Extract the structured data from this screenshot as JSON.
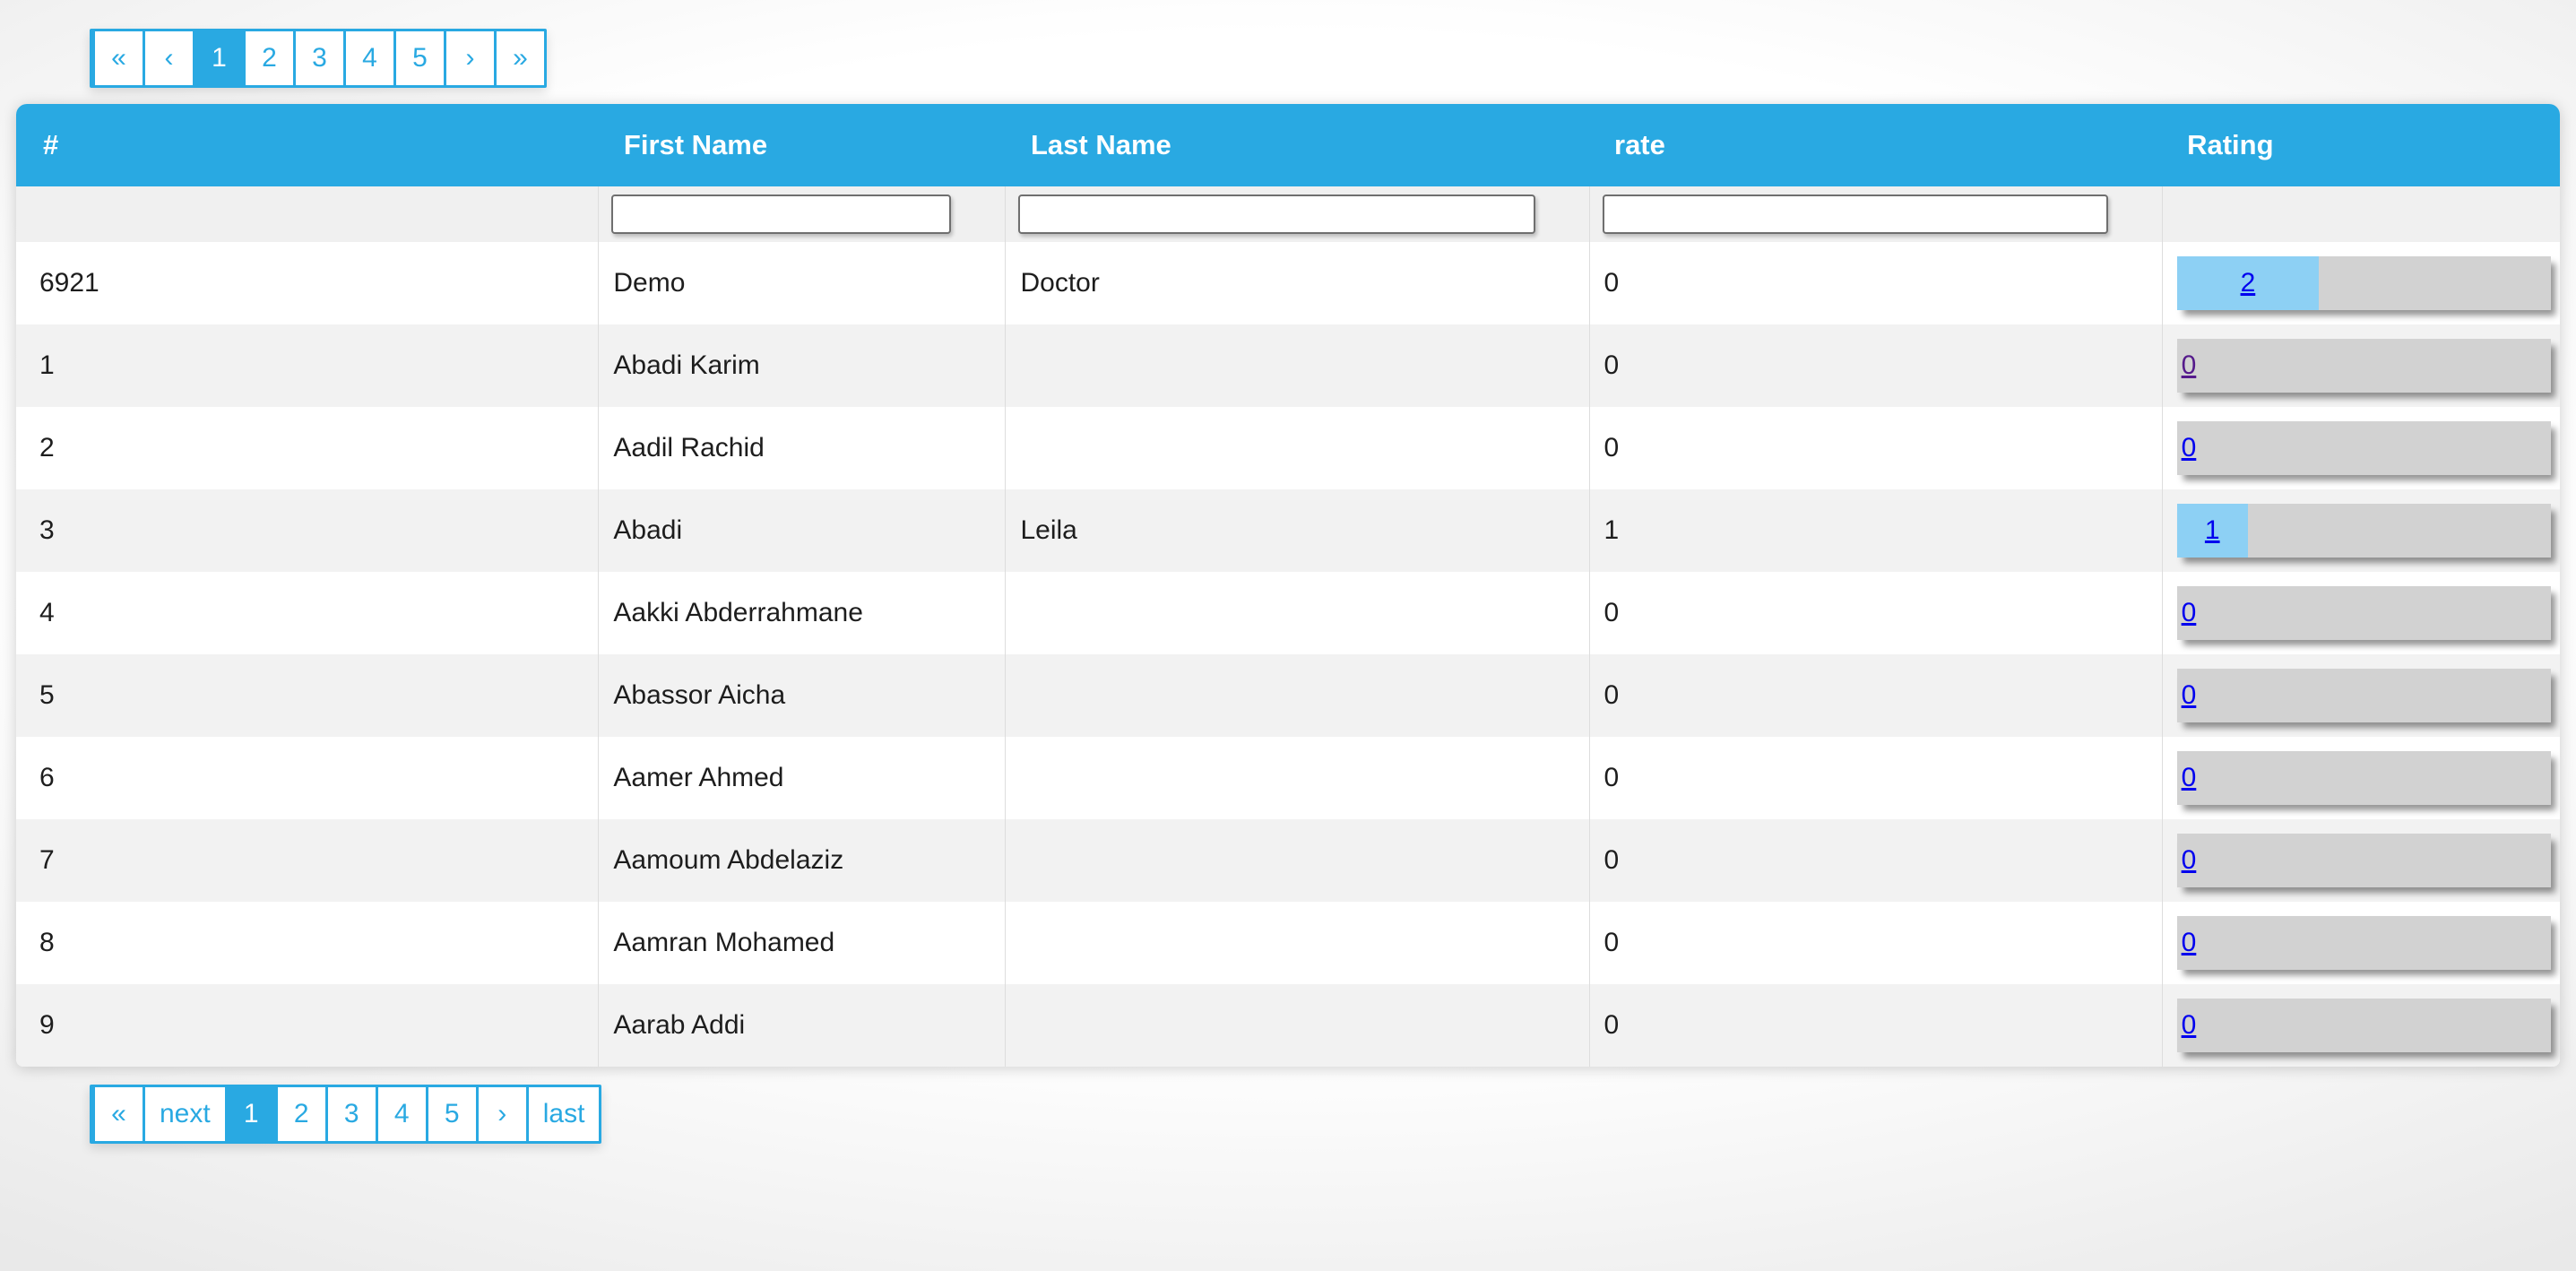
{
  "colors": {
    "accent_blue": "#29a9e2",
    "row_stripe": "#f2f2f2",
    "bar_track_gray": "#d2d2d2",
    "bar_fill_blue": "#8dd0f4",
    "link_blue": "#0000ee",
    "link_visited_purple": "#551a8b"
  },
  "pagination_top": {
    "items": [
      {
        "label": "«",
        "name": "first",
        "active": false
      },
      {
        "label": "‹",
        "name": "prev",
        "active": false
      },
      {
        "label": "1",
        "name": "page-1",
        "active": true
      },
      {
        "label": "2",
        "name": "page-2",
        "active": false
      },
      {
        "label": "3",
        "name": "page-3",
        "active": false
      },
      {
        "label": "4",
        "name": "page-4",
        "active": false
      },
      {
        "label": "5",
        "name": "page-5",
        "active": false
      },
      {
        "label": "›",
        "name": "next-arrow",
        "active": false
      },
      {
        "label": "»",
        "name": "last",
        "active": false
      }
    ]
  },
  "table": {
    "columns": [
      {
        "label": "#"
      },
      {
        "label": "First Name"
      },
      {
        "label": "Last Name"
      },
      {
        "label": "rate"
      },
      {
        "label": "Rating"
      }
    ],
    "filters": {
      "first_name": "",
      "last_name": "",
      "rate": ""
    },
    "rows": [
      {
        "id": "6921",
        "first_name": "Demo",
        "last_name": "Doctor",
        "rate": "0",
        "rating_value": "2",
        "rating_fill_pct": 38,
        "rating_visited": false
      },
      {
        "id": "1",
        "first_name": "Abadi Karim",
        "last_name": "",
        "rate": "0",
        "rating_value": "0",
        "rating_fill_pct": 0,
        "rating_visited": true
      },
      {
        "id": "2",
        "first_name": "Aadil Rachid",
        "last_name": "",
        "rate": "0",
        "rating_value": "0",
        "rating_fill_pct": 0,
        "rating_visited": false
      },
      {
        "id": "3",
        "first_name": "Abadi",
        "last_name": "Leila",
        "rate": "1",
        "rating_value": "1",
        "rating_fill_pct": 19,
        "rating_visited": false
      },
      {
        "id": "4",
        "first_name": "Aakki Abderrahmane",
        "last_name": "",
        "rate": "0",
        "rating_value": "0",
        "rating_fill_pct": 0,
        "rating_visited": false
      },
      {
        "id": "5",
        "first_name": "Abassor Aicha",
        "last_name": "",
        "rate": "0",
        "rating_value": "0",
        "rating_fill_pct": 0,
        "rating_visited": false
      },
      {
        "id": "6",
        "first_name": "Aamer Ahmed",
        "last_name": "",
        "rate": "0",
        "rating_value": "0",
        "rating_fill_pct": 0,
        "rating_visited": false
      },
      {
        "id": "7",
        "first_name": "Aamoum Abdelaziz",
        "last_name": "",
        "rate": "0",
        "rating_value": "0",
        "rating_fill_pct": 0,
        "rating_visited": false
      },
      {
        "id": "8",
        "first_name": "Aamran Mohamed",
        "last_name": "",
        "rate": "0",
        "rating_value": "0",
        "rating_fill_pct": 0,
        "rating_visited": false
      },
      {
        "id": "9",
        "first_name": "Aarab Addi",
        "last_name": "",
        "rate": "0",
        "rating_value": "0",
        "rating_fill_pct": 0,
        "rating_visited": false
      }
    ]
  },
  "pagination_bottom": {
    "items": [
      {
        "label": "«",
        "name": "first",
        "active": false
      },
      {
        "label": "next",
        "name": "next",
        "active": false
      },
      {
        "label": "1",
        "name": "page-1",
        "active": true
      },
      {
        "label": "2",
        "name": "page-2",
        "active": false
      },
      {
        "label": "3",
        "name": "page-3",
        "active": false
      },
      {
        "label": "4",
        "name": "page-4",
        "active": false
      },
      {
        "label": "5",
        "name": "page-5",
        "active": false
      },
      {
        "label": "›",
        "name": "next-arrow",
        "active": false
      },
      {
        "label": "last",
        "name": "last",
        "active": false
      }
    ]
  }
}
